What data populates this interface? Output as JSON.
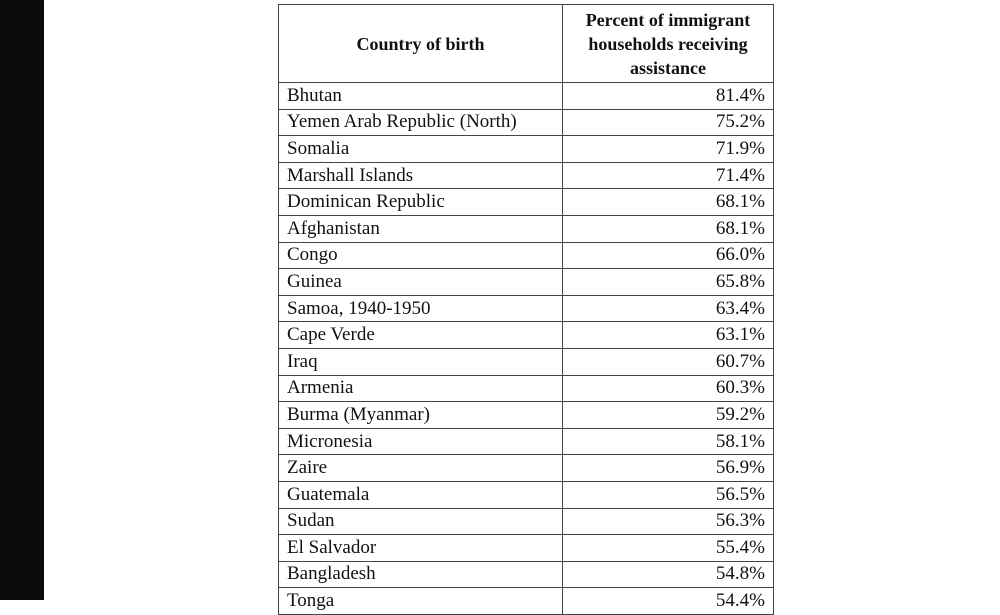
{
  "table": {
    "header": [
      "Country of birth",
      "Percent of immigrant households receiving assistance"
    ],
    "rows": [
      [
        "Bhutan",
        "81.4%"
      ],
      [
        "Yemen Arab Republic (North)",
        "75.2%"
      ],
      [
        "Somalia",
        "71.9%"
      ],
      [
        "Marshall Islands",
        "71.4%"
      ],
      [
        "Dominican Republic",
        "68.1%"
      ],
      [
        "Afghanistan",
        "68.1%"
      ],
      [
        "Congo",
        "66.0%"
      ],
      [
        "Guinea",
        "65.8%"
      ],
      [
        "Samoa, 1940-1950",
        "63.4%"
      ],
      [
        "Cape Verde",
        "63.1%"
      ],
      [
        "Iraq",
        "60.7%"
      ],
      [
        "Armenia",
        "60.3%"
      ],
      [
        "Burma (Myanmar)",
        "59.2%"
      ],
      [
        "Micronesia",
        "58.1%"
      ],
      [
        "Zaire",
        "56.9%"
      ],
      [
        "Guatemala",
        "56.5%"
      ],
      [
        "Sudan",
        "56.3%"
      ],
      [
        "El Salvador",
        "55.4%"
      ],
      [
        "Bangladesh",
        "54.8%"
      ],
      [
        "Tonga",
        "54.4%"
      ]
    ]
  }
}
